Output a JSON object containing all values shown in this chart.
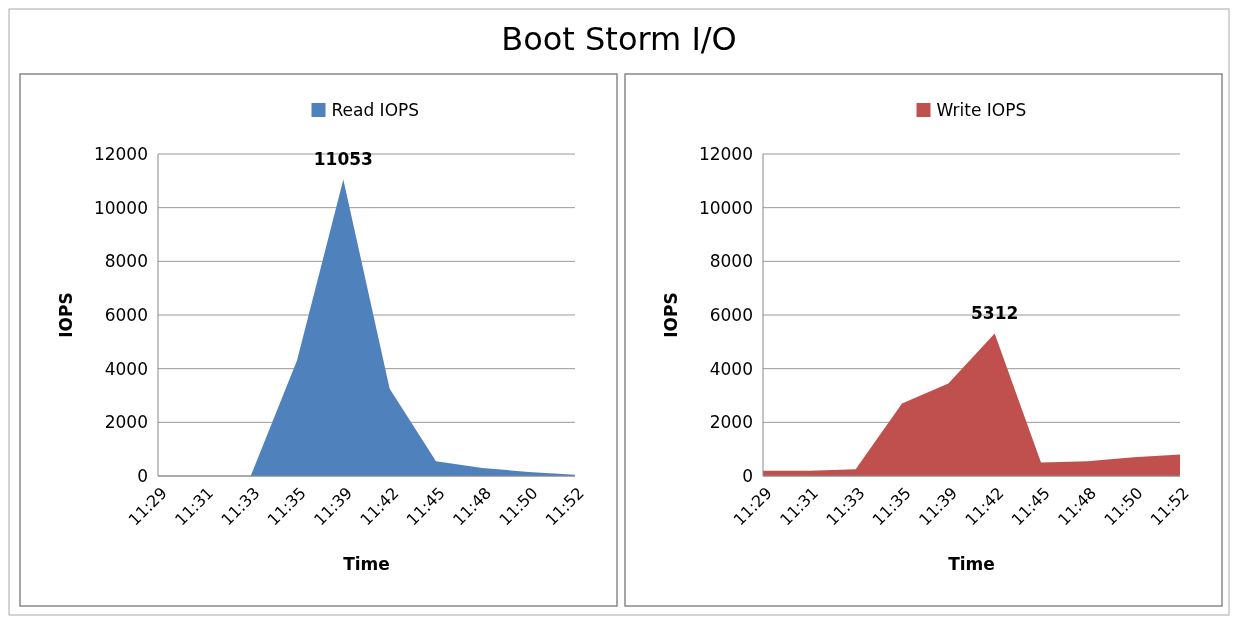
{
  "chart_data": [
    {
      "type": "area",
      "title": "Boot Storm I/O",
      "xlabel": "Time",
      "ylabel": "IOPS",
      "categories": [
        "11:29",
        "11:31",
        "11:33",
        "11:35",
        "11:39",
        "11:42",
        "11:45",
        "11:48",
        "11:50",
        "11:52"
      ],
      "series": [
        {
          "name": "Read IOPS",
          "color": "#4f81bd",
          "values": [
            0,
            0,
            0,
            4300,
            11053,
            3250,
            550,
            300,
            150,
            50
          ],
          "value_labels": [
            null,
            null,
            null,
            null,
            "11053",
            null,
            null,
            null,
            null,
            null
          ]
        }
      ],
      "ylim": [
        0,
        12000
      ],
      "yticks": [
        0,
        2000,
        4000,
        6000,
        8000,
        10000,
        12000
      ],
      "grid": "y",
      "legend": "top"
    },
    {
      "type": "area",
      "xlabel": "Time",
      "ylabel": "IOPS",
      "categories": [
        "11:29",
        "11:31",
        "11:33",
        "11:35",
        "11:39",
        "11:42",
        "11:45",
        "11:48",
        "11:50",
        "11:52"
      ],
      "series": [
        {
          "name": "Write IOPS",
          "color": "#c0504d",
          "values": [
            200,
            200,
            250,
            2700,
            3450,
            5312,
            500,
            550,
            700,
            800
          ],
          "value_labels": [
            null,
            null,
            null,
            null,
            null,
            "5312",
            null,
            null,
            null,
            null
          ]
        }
      ],
      "ylim": [
        0,
        12000
      ],
      "yticks": [
        0,
        2000,
        4000,
        6000,
        8000,
        10000,
        12000
      ],
      "grid": "y",
      "legend": "top"
    }
  ]
}
